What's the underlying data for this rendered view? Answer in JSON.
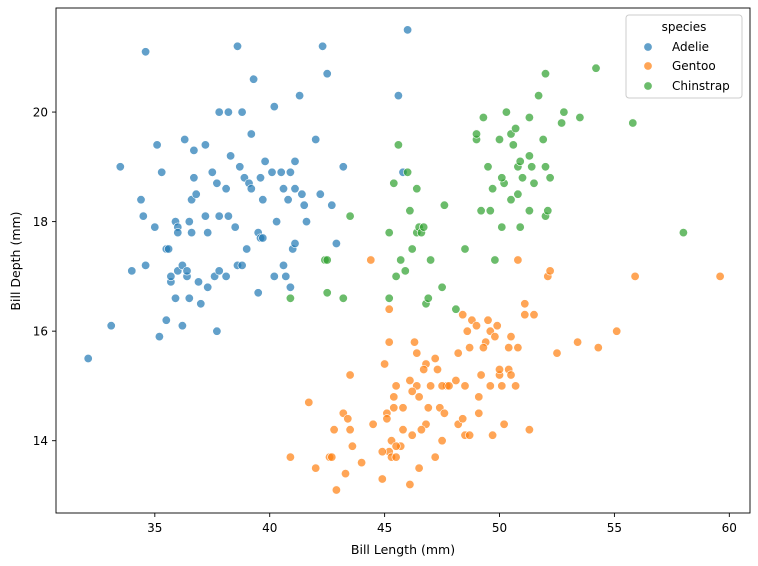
{
  "chart_data": {
    "type": "scatter",
    "title": "",
    "xlabel": "Bill Length (mm)",
    "ylabel": "Bill Depth (mm)",
    "xlim": [
      30.7,
      60.9
    ],
    "ylim": [
      12.68,
      21.9
    ],
    "xticks": [
      35,
      40,
      45,
      50,
      55,
      60
    ],
    "yticks": [
      14,
      16,
      18,
      20
    ],
    "grid": false,
    "legend": {
      "title": "species",
      "position": "top-right"
    },
    "series": [
      {
        "name": "Adelie",
        "color": "#1f77b4",
        "points": [
          [
            32.1,
            15.5
          ],
          [
            33.1,
            16.1
          ],
          [
            33.5,
            19.0
          ],
          [
            34.0,
            17.1
          ],
          [
            34.4,
            18.4
          ],
          [
            34.5,
            18.1
          ],
          [
            34.6,
            21.1
          ],
          [
            34.6,
            17.2
          ],
          [
            35.0,
            17.9
          ],
          [
            35.1,
            19.4
          ],
          [
            35.2,
            15.9
          ],
          [
            35.3,
            18.9
          ],
          [
            35.5,
            16.2
          ],
          [
            35.5,
            17.5
          ],
          [
            35.6,
            17.5
          ],
          [
            35.7,
            16.9
          ],
          [
            35.7,
            17.0
          ],
          [
            35.9,
            16.6
          ],
          [
            35.9,
            18.0
          ],
          [
            36.0,
            17.9
          ],
          [
            36.0,
            17.8
          ],
          [
            36.0,
            17.1
          ],
          [
            36.2,
            16.1
          ],
          [
            36.2,
            17.2
          ],
          [
            36.3,
            19.5
          ],
          [
            36.4,
            17.0
          ],
          [
            36.4,
            17.1
          ],
          [
            36.5,
            16.6
          ],
          [
            36.5,
            18.0
          ],
          [
            36.6,
            17.8
          ],
          [
            36.6,
            18.4
          ],
          [
            36.7,
            18.8
          ],
          [
            36.7,
            19.3
          ],
          [
            36.8,
            18.5
          ],
          [
            36.9,
            16.9
          ],
          [
            37.0,
            16.5
          ],
          [
            37.2,
            18.1
          ],
          [
            37.2,
            19.4
          ],
          [
            37.3,
            16.8
          ],
          [
            37.3,
            17.8
          ],
          [
            37.5,
            18.9
          ],
          [
            37.6,
            17.0
          ],
          [
            37.7,
            16.0
          ],
          [
            37.7,
            18.7
          ],
          [
            37.8,
            17.1
          ],
          [
            37.8,
            18.1
          ],
          [
            37.8,
            20.0
          ],
          [
            38.1,
            18.6
          ],
          [
            38.1,
            17.0
          ],
          [
            38.2,
            18.1
          ],
          [
            38.2,
            20.0
          ],
          [
            38.3,
            19.2
          ],
          [
            38.5,
            17.9
          ],
          [
            38.6,
            21.2
          ],
          [
            38.6,
            17.2
          ],
          [
            38.7,
            19.0
          ],
          [
            38.8,
            17.2
          ],
          [
            38.8,
            20.0
          ],
          [
            38.9,
            18.8
          ],
          [
            39.0,
            17.5
          ],
          [
            39.1,
            18.7
          ],
          [
            39.2,
            19.6
          ],
          [
            39.2,
            18.6
          ],
          [
            39.3,
            20.6
          ],
          [
            39.5,
            16.7
          ],
          [
            39.5,
            17.8
          ],
          [
            39.6,
            17.7
          ],
          [
            39.6,
            18.8
          ],
          [
            39.7,
            18.4
          ],
          [
            39.7,
            17.7
          ],
          [
            39.8,
            19.1
          ],
          [
            40.1,
            18.9
          ],
          [
            40.2,
            17.0
          ],
          [
            40.2,
            20.1
          ],
          [
            40.3,
            18.0
          ],
          [
            40.5,
            18.9
          ],
          [
            40.6,
            18.6
          ],
          [
            40.6,
            17.2
          ],
          [
            40.7,
            17.0
          ],
          [
            40.8,
            18.4
          ],
          [
            40.9,
            18.9
          ],
          [
            40.9,
            16.8
          ],
          [
            41.0,
            17.5
          ],
          [
            41.1,
            18.6
          ],
          [
            41.1,
            19.1
          ],
          [
            41.1,
            17.6
          ],
          [
            41.3,
            20.3
          ],
          [
            41.4,
            18.5
          ],
          [
            41.5,
            18.3
          ],
          [
            41.6,
            18.0
          ],
          [
            42.0,
            19.5
          ],
          [
            42.2,
            18.5
          ],
          [
            42.3,
            21.2
          ],
          [
            42.5,
            20.7
          ],
          [
            42.7,
            18.3
          ],
          [
            42.9,
            17.6
          ],
          [
            43.2,
            19.0
          ],
          [
            45.8,
            18.9
          ],
          [
            46.0,
            21.5
          ],
          [
            45.6,
            20.3
          ]
        ]
      },
      {
        "name": "Gentoo",
        "color": "#ff7f0e",
        "points": [
          [
            40.9,
            13.7
          ],
          [
            41.7,
            14.7
          ],
          [
            42.0,
            13.5
          ],
          [
            42.6,
            13.7
          ],
          [
            42.7,
            13.7
          ],
          [
            42.8,
            14.2
          ],
          [
            42.9,
            13.1
          ],
          [
            43.2,
            14.5
          ],
          [
            43.3,
            13.4
          ],
          [
            43.4,
            14.4
          ],
          [
            43.5,
            14.2
          ],
          [
            43.6,
            13.9
          ],
          [
            44.0,
            13.6
          ],
          [
            44.4,
            17.3
          ],
          [
            44.5,
            14.3
          ],
          [
            44.9,
            13.3
          ],
          [
            45.0,
            15.4
          ],
          [
            45.1,
            14.5
          ],
          [
            45.2,
            13.8
          ],
          [
            45.3,
            13.7
          ],
          [
            45.4,
            14.6
          ],
          [
            45.5,
            13.7
          ],
          [
            45.7,
            13.9
          ],
          [
            45.8,
            14.6
          ],
          [
            46.1,
            13.2
          ],
          [
            46.2,
            14.1
          ],
          [
            46.4,
            15.0
          ],
          [
            46.5,
            13.5
          ],
          [
            46.8,
            14.3
          ],
          [
            47.0,
            15.0
          ],
          [
            47.2,
            13.7
          ],
          [
            47.3,
            15.3
          ],
          [
            47.5,
            14.0
          ],
          [
            47.7,
            15.0
          ],
          [
            48.1,
            15.1
          ],
          [
            48.2,
            14.3
          ],
          [
            48.4,
            14.4
          ],
          [
            48.5,
            14.1
          ],
          [
            48.7,
            14.1
          ],
          [
            48.8,
            16.2
          ],
          [
            49.1,
            14.5
          ],
          [
            49.2,
            15.2
          ],
          [
            49.4,
            15.8
          ],
          [
            49.5,
            16.2
          ],
          [
            49.6,
            16.0
          ],
          [
            49.8,
            15.9
          ],
          [
            49.9,
            16.1
          ],
          [
            50.0,
            15.2
          ],
          [
            50.1,
            15.0
          ],
          [
            50.4,
            15.3
          ],
          [
            50.5,
            15.9
          ],
          [
            50.7,
            15.0
          ],
          [
            50.8,
            15.7
          ],
          [
            51.1,
            16.3
          ],
          [
            51.3,
            14.2
          ],
          [
            51.5,
            16.3
          ],
          [
            52.1,
            17.0
          ],
          [
            52.2,
            17.1
          ],
          [
            52.5,
            15.6
          ],
          [
            53.4,
            15.8
          ],
          [
            54.3,
            15.7
          ],
          [
            55.1,
            16.0
          ],
          [
            55.9,
            17.0
          ],
          [
            59.6,
            17.0
          ],
          [
            43.5,
            15.2
          ],
          [
            44.9,
            13.8
          ],
          [
            45.1,
            14.4
          ],
          [
            45.2,
            15.8
          ],
          [
            45.3,
            14.0
          ],
          [
            45.5,
            15.0
          ],
          [
            45.8,
            14.2
          ],
          [
            46.2,
            14.9
          ],
          [
            46.3,
            15.8
          ],
          [
            46.5,
            14.8
          ],
          [
            46.6,
            14.2
          ],
          [
            46.8,
            15.4
          ],
          [
            46.9,
            14.6
          ],
          [
            47.4,
            14.6
          ],
          [
            47.5,
            15.0
          ],
          [
            47.8,
            15.0
          ],
          [
            48.2,
            15.6
          ],
          [
            48.4,
            16.3
          ],
          [
            48.6,
            16.0
          ],
          [
            49.0,
            16.1
          ],
          [
            49.3,
            15.7
          ],
          [
            49.7,
            14.1
          ],
          [
            50.0,
            15.3
          ],
          [
            50.2,
            14.3
          ],
          [
            50.5,
            15.2
          ],
          [
            50.8,
            17.3
          ],
          [
            51.1,
            16.5
          ],
          [
            45.2,
            16.4
          ],
          [
            45.4,
            14.8
          ],
          [
            45.5,
            13.9
          ],
          [
            46.1,
            15.1
          ],
          [
            46.4,
            15.6
          ],
          [
            47.2,
            15.5
          ],
          [
            48.5,
            15.0
          ],
          [
            49.1,
            14.8
          ],
          [
            49.6,
            15.0
          ],
          [
            50.4,
            15.7
          ],
          [
            46.7,
            15.3
          ],
          [
            47.6,
            14.5
          ],
          [
            48.7,
            15.7
          ]
        ]
      },
      {
        "name": "Chinstrap",
        "color": "#2ca02c",
        "points": [
          [
            40.9,
            16.6
          ],
          [
            42.4,
            17.3
          ],
          [
            42.5,
            16.7
          ],
          [
            42.5,
            17.3
          ],
          [
            43.2,
            16.6
          ],
          [
            43.5,
            18.1
          ],
          [
            45.2,
            16.6
          ],
          [
            45.2,
            17.8
          ],
          [
            45.4,
            18.7
          ],
          [
            45.5,
            17.0
          ],
          [
            45.6,
            19.4
          ],
          [
            45.7,
            17.3
          ],
          [
            45.9,
            17.1
          ],
          [
            46.0,
            18.9
          ],
          [
            46.1,
            18.2
          ],
          [
            46.2,
            17.5
          ],
          [
            46.4,
            17.8
          ],
          [
            46.4,
            18.6
          ],
          [
            46.5,
            17.9
          ],
          [
            46.6,
            17.8
          ],
          [
            46.7,
            17.9
          ],
          [
            46.8,
            16.5
          ],
          [
            46.9,
            16.6
          ],
          [
            47.0,
            17.3
          ],
          [
            47.5,
            16.8
          ],
          [
            47.6,
            18.3
          ],
          [
            48.1,
            16.4
          ],
          [
            48.5,
            17.5
          ],
          [
            49.0,
            19.5
          ],
          [
            49.2,
            18.2
          ],
          [
            49.3,
            19.9
          ],
          [
            49.5,
            19.0
          ],
          [
            49.6,
            18.2
          ],
          [
            49.7,
            18.6
          ],
          [
            49.8,
            17.3
          ],
          [
            50.0,
            19.5
          ],
          [
            50.1,
            17.9
          ],
          [
            50.2,
            18.7
          ],
          [
            50.3,
            20.0
          ],
          [
            50.5,
            18.4
          ],
          [
            50.5,
            19.6
          ],
          [
            50.6,
            19.4
          ],
          [
            50.7,
            19.7
          ],
          [
            50.8,
            18.5
          ],
          [
            50.8,
            19.0
          ],
          [
            50.9,
            17.9
          ],
          [
            50.9,
            19.1
          ],
          [
            51.0,
            18.8
          ],
          [
            51.3,
            18.2
          ],
          [
            51.3,
            19.2
          ],
          [
            51.3,
            19.9
          ],
          [
            51.4,
            19.0
          ],
          [
            51.5,
            18.7
          ],
          [
            51.7,
            20.3
          ],
          [
            51.9,
            19.5
          ],
          [
            52.0,
            18.1
          ],
          [
            52.0,
            19.0
          ],
          [
            52.0,
            20.7
          ],
          [
            52.2,
            18.8
          ],
          [
            52.7,
            19.8
          ],
          [
            52.8,
            20.0
          ],
          [
            53.5,
            19.9
          ],
          [
            54.2,
            20.8
          ],
          [
            55.8,
            19.8
          ],
          [
            58.0,
            17.8
          ],
          [
            49.0,
            19.6
          ],
          [
            50.1,
            18.8
          ],
          [
            52.1,
            18.2
          ]
        ]
      }
    ]
  }
}
